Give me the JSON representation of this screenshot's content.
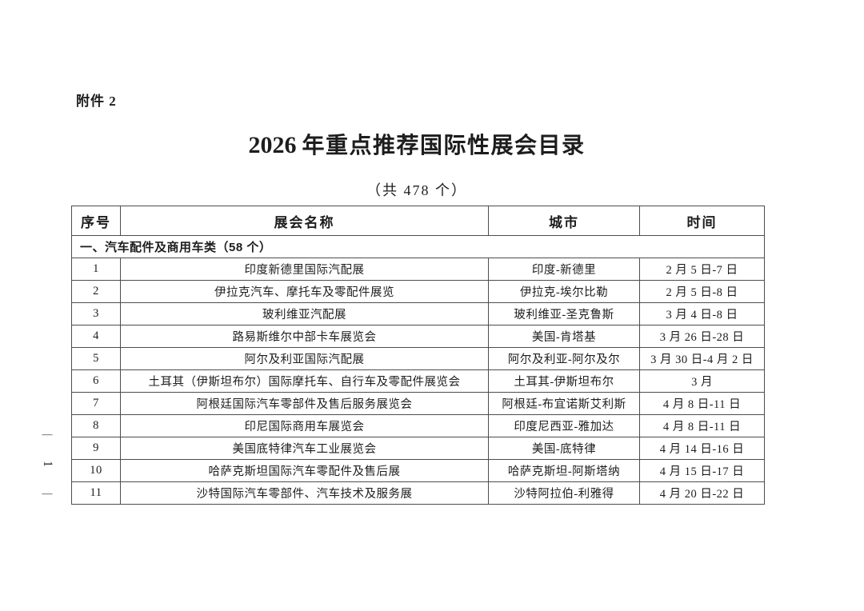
{
  "page": {
    "attachment_label": "附件 2",
    "title_year": "2026",
    "title_main": "年重点推荐国际性展会目录",
    "subtitle": "（共 478 个）",
    "page_number_dash": "—",
    "page_number": "1"
  },
  "table": {
    "headers": [
      "序号",
      "展会名称",
      "城市",
      "时间"
    ],
    "section_header": "一、汽车配件及商用车类（58 个）",
    "rows": [
      {
        "no": "1",
        "name": "印度新德里国际汽配展",
        "city": "印度-新德里",
        "date": "2 月 5 日-7 日"
      },
      {
        "no": "2",
        "name": "伊拉克汽车、摩托车及零配件展览",
        "city": "伊拉克-埃尔比勒",
        "date": "2 月 5 日-8 日"
      },
      {
        "no": "3",
        "name": "玻利维亚汽配展",
        "city": "玻利维亚-圣克鲁斯",
        "date": "3 月 4 日-8 日"
      },
      {
        "no": "4",
        "name": "路易斯维尔中部卡车展览会",
        "city": "美国-肯塔基",
        "date": "3 月 26 日-28 日"
      },
      {
        "no": "5",
        "name": "阿尔及利亚国际汽配展",
        "city": "阿尔及利亚-阿尔及尔",
        "date": "3 月 30 日-4 月 2 日"
      },
      {
        "no": "6",
        "name": "土耳其（伊斯坦布尔）国际摩托车、自行车及零配件展览会",
        "city": "土耳其-伊斯坦布尔",
        "date": "3 月"
      },
      {
        "no": "7",
        "name": "阿根廷国际汽车零部件及售后服务展览会",
        "city": "阿根廷-布宜诺斯艾利斯",
        "date": "4 月 8 日-11 日"
      },
      {
        "no": "8",
        "name": "印尼国际商用车展览会",
        "city": "印度尼西亚-雅加达",
        "date": "4 月 8 日-11 日"
      },
      {
        "no": "9",
        "name": "美国底特律汽车工业展览会",
        "city": "美国-底特律",
        "date": "4 月 14 日-16 日"
      },
      {
        "no": "10",
        "name": "哈萨克斯坦国际汽车零配件及售后展",
        "city": "哈萨克斯坦-阿斯塔纳",
        "date": "4 月 15 日-17 日"
      },
      {
        "no": "11",
        "name": "沙特国际汽车零部件、汽车技术及服务展",
        "city": "沙特阿拉伯-利雅得",
        "date": "4 月 20 日-22 日"
      }
    ]
  },
  "colors": {
    "text": "#1d1d1d",
    "border": "#4d4d4d",
    "background": "#ffffff"
  }
}
